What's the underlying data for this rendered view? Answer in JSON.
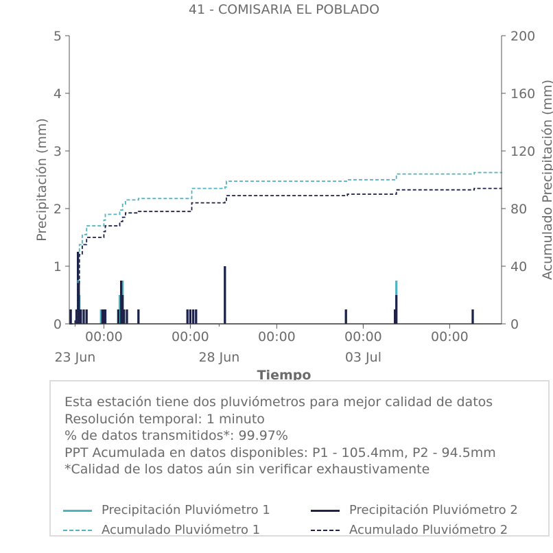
{
  "chart_data": {
    "type": "bar+line",
    "title": "41 - COMISARIA EL POBLADO",
    "xlabel": "Tiempo",
    "ylabel_left": "Precipitación (mm)",
    "ylabel_right": "Acumulado Precipitación (mm)",
    "ylim_left": [
      0,
      5
    ],
    "ylim_right": [
      0,
      200
    ],
    "yticks_left": [
      "0",
      "1",
      "2",
      "3",
      "4",
      "5"
    ],
    "yticks_right": [
      "0",
      "40",
      "80",
      "120",
      "160",
      "200"
    ],
    "xlim_days": [
      22.8,
      37.8
    ],
    "xticks_major": [
      {
        "day": 24,
        "top": "00:00",
        "bottom": ""
      },
      {
        "day": 27,
        "top": "00:00",
        "bottom": ""
      },
      {
        "day": 30,
        "top": "00:00",
        "bottom": ""
      },
      {
        "day": 33,
        "top": "00:00",
        "bottom": ""
      },
      {
        "day": 36,
        "top": "00:00",
        "bottom": ""
      }
    ],
    "xticks_minor": [
      {
        "day": 23,
        "label": "23 Jun"
      },
      {
        "day": 28,
        "label": "28 Jun"
      },
      {
        "day": 33,
        "label": "03 Jul"
      }
    ],
    "series": [
      {
        "name": "Precipitación Pluviómetro 1",
        "kind": "bars",
        "color": "#4eb3c2",
        "points": [
          [
            22.85,
            0.25
          ],
          [
            23.05,
            0.25
          ],
          [
            23.1,
            1.25
          ],
          [
            23.15,
            0.5
          ],
          [
            23.2,
            0.25
          ],
          [
            23.3,
            0.25
          ],
          [
            23.4,
            0.25
          ],
          [
            23.9,
            0.25
          ],
          [
            24.0,
            0.25
          ],
          [
            24.05,
            0.25
          ],
          [
            24.5,
            0.25
          ],
          [
            24.55,
            0.5
          ],
          [
            24.65,
            0.75
          ],
          [
            24.7,
            0.25
          ],
          [
            24.8,
            0.25
          ],
          [
            25.2,
            0.25
          ],
          [
            26.9,
            0.25
          ],
          [
            27.0,
            0.25
          ],
          [
            27.1,
            0.25
          ],
          [
            27.2,
            0.25
          ],
          [
            28.2,
            1.0
          ],
          [
            32.4,
            0.25
          ],
          [
            34.1,
            0.25
          ],
          [
            34.15,
            0.75
          ],
          [
            36.8,
            0.25
          ]
        ]
      },
      {
        "name": "Precipitación Pluviómetro 2",
        "kind": "bars",
        "color": "#1f2148",
        "points": [
          [
            22.85,
            0.25
          ],
          [
            23.05,
            0.25
          ],
          [
            23.1,
            1.25
          ],
          [
            23.13,
            0.75
          ],
          [
            23.2,
            0.25
          ],
          [
            23.3,
            0.25
          ],
          [
            23.4,
            0.25
          ],
          [
            23.95,
            0.25
          ],
          [
            24.0,
            0.25
          ],
          [
            24.05,
            0.25
          ],
          [
            24.5,
            0.25
          ],
          [
            24.6,
            0.75
          ],
          [
            24.65,
            0.5
          ],
          [
            24.7,
            0.25
          ],
          [
            24.8,
            0.25
          ],
          [
            25.2,
            0.25
          ],
          [
            26.9,
            0.25
          ],
          [
            27.0,
            0.25
          ],
          [
            27.1,
            0.25
          ],
          [
            27.2,
            0.25
          ],
          [
            28.2,
            1.0
          ],
          [
            32.4,
            0.25
          ],
          [
            34.1,
            0.25
          ],
          [
            34.15,
            0.5
          ],
          [
            36.8,
            0.25
          ]
        ]
      },
      {
        "name": "Acumulado Pluviómetro 1",
        "kind": "step",
        "dashed": true,
        "color": "#4eb3c2",
        "points": [
          [
            22.8,
            0
          ],
          [
            23.0,
            2
          ],
          [
            23.1,
            30
          ],
          [
            23.15,
            55
          ],
          [
            23.25,
            62
          ],
          [
            23.4,
            68
          ],
          [
            23.95,
            68
          ],
          [
            24.0,
            72
          ],
          [
            24.05,
            76
          ],
          [
            24.5,
            76
          ],
          [
            24.55,
            79
          ],
          [
            24.65,
            83
          ],
          [
            24.75,
            86
          ],
          [
            25.2,
            87
          ],
          [
            26.9,
            87
          ],
          [
            27.05,
            94
          ],
          [
            28.2,
            95
          ],
          [
            28.25,
            99
          ],
          [
            32.4,
            99
          ],
          [
            32.45,
            100
          ],
          [
            34.1,
            100
          ],
          [
            34.15,
            104
          ],
          [
            36.8,
            104
          ],
          [
            36.85,
            105
          ],
          [
            37.8,
            105.4
          ]
        ]
      },
      {
        "name": "Acumulado Pluviómetro 2",
        "kind": "step",
        "dashed": true,
        "color": "#1f2148",
        "points": [
          [
            22.8,
            0
          ],
          [
            23.0,
            2
          ],
          [
            23.1,
            28
          ],
          [
            23.15,
            48
          ],
          [
            23.25,
            55
          ],
          [
            23.4,
            60
          ],
          [
            23.95,
            60
          ],
          [
            24.0,
            64
          ],
          [
            24.05,
            68
          ],
          [
            24.5,
            68
          ],
          [
            24.55,
            71
          ],
          [
            24.65,
            74
          ],
          [
            24.75,
            77
          ],
          [
            25.2,
            78
          ],
          [
            26.9,
            78
          ],
          [
            27.05,
            84
          ],
          [
            28.2,
            85
          ],
          [
            28.25,
            89
          ],
          [
            32.4,
            89
          ],
          [
            32.45,
            90
          ],
          [
            34.1,
            90
          ],
          [
            34.15,
            93
          ],
          [
            36.8,
            93
          ],
          [
            36.85,
            94
          ],
          [
            37.8,
            94.5
          ]
        ]
      }
    ],
    "legend_placement": "bottom"
  },
  "info": {
    "lines": [
      "Esta estación tiene dos pluviómetros para mejor calidad de datos",
      "Resolución temporal: 1 minuto",
      "% de datos transmitidos*: 99.97%",
      "PPT Acumulada en datos disponibles: P1 - 105.4mm, P2 - 94.5mm",
      "*Calidad de los datos aún sin verificar exhaustivamente"
    ]
  },
  "legend": {
    "items": [
      {
        "label": "Precipitación Pluviómetro 1",
        "color": "#4eb3c2",
        "dashed": false
      },
      {
        "label": "Precipitación Pluviómetro 2",
        "color": "#1f2148",
        "dashed": false
      },
      {
        "label": "Acumulado Pluviómetro 1",
        "color": "#4eb3c2",
        "dashed": true
      },
      {
        "label": "Acumulado Pluviómetro 2",
        "color": "#1f2148",
        "dashed": true
      }
    ]
  }
}
